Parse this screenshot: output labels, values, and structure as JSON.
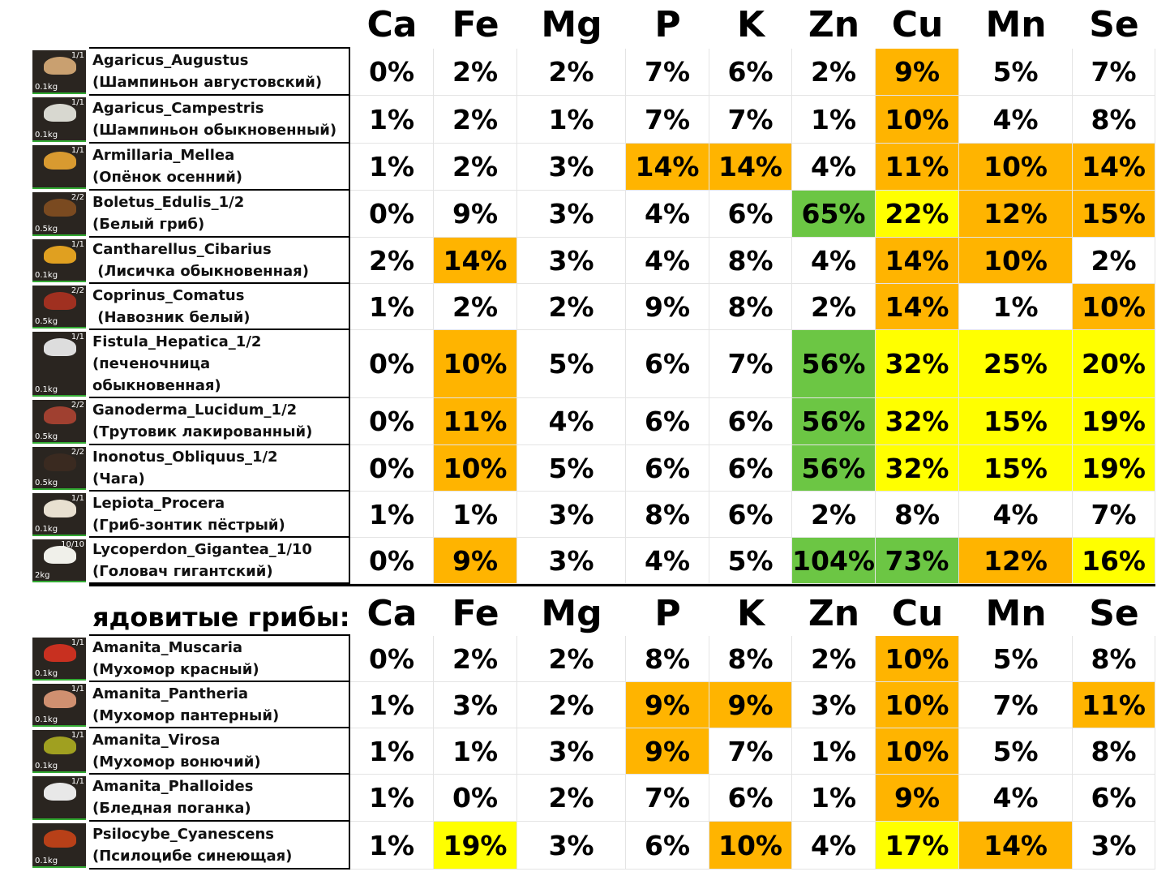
{
  "tables": [
    {
      "caption": null,
      "columns": [
        "Ca",
        "Fe",
        "Mg",
        "P",
        "K",
        "Zn",
        "Cu",
        "Mn",
        "Se"
      ],
      "rows": [
        {
          "lines": [
            "Agaricus_Augustus",
            "(Шампиньон августовский)"
          ],
          "count": "1/1",
          "weight": "0.1kg",
          "cells": [
            "0%",
            "2%",
            "2%",
            "7%",
            "6%",
            "2%",
            "9%",
            "5%",
            "7%"
          ],
          "colors": [
            null,
            null,
            null,
            null,
            null,
            null,
            "#ffb400",
            null,
            null
          ]
        },
        {
          "lines": [
            "Agaricus_Campestris",
            "(Шампиньон обыкновенный)"
          ],
          "count": "1/1",
          "weight": "0.1kg",
          "cells": [
            "1%",
            "2%",
            "1%",
            "7%",
            "7%",
            "1%",
            "10%",
            "4%",
            "8%"
          ],
          "colors": [
            null,
            null,
            null,
            null,
            null,
            null,
            "#ffb400",
            null,
            null
          ]
        },
        {
          "lines": [
            "Armillaria_Mellea",
            "(Опёнок осенний)"
          ],
          "count": "1/1",
          "weight": null,
          "cells": [
            "1%",
            "2%",
            "3%",
            "14%",
            "14%",
            "4%",
            "11%",
            "10%",
            "14%"
          ],
          "colors": [
            null,
            null,
            null,
            "#ffb400",
            "#ffb400",
            null,
            "#ffb400",
            "#ffb400",
            "#ffb400"
          ]
        },
        {
          "lines": [
            "Boletus_Edulis_1/2",
            "(Белый гриб)"
          ],
          "count": "2/2",
          "weight": "0.5kg",
          "cells": [
            "0%",
            "9%",
            "3%",
            "4%",
            "6%",
            "65%",
            "22%",
            "12%",
            "15%"
          ],
          "colors": [
            null,
            null,
            null,
            null,
            null,
            "#6cc644",
            "#ffff00",
            "#ffb400",
            "#ffb400"
          ]
        },
        {
          "lines": [
            "Cantharellus_Cibarius",
            " (Лисичка обыкновенная)"
          ],
          "count": "1/1",
          "weight": "0.1kg",
          "cells": [
            "2%",
            "14%",
            "3%",
            "4%",
            "8%",
            "4%",
            "14%",
            "10%",
            "2%"
          ],
          "colors": [
            null,
            "#ffb400",
            null,
            null,
            null,
            null,
            "#ffb400",
            "#ffb400",
            null
          ]
        },
        {
          "lines": [
            "Coprinus_Comatus",
            " (Навозник белый)"
          ],
          "count": "2/2",
          "weight": "0.5kg",
          "cells": [
            "1%",
            "2%",
            "2%",
            "9%",
            "8%",
            "2%",
            "14%",
            "1%",
            "10%"
          ],
          "colors": [
            null,
            null,
            null,
            null,
            null,
            null,
            "#ffb400",
            null,
            "#ffb400"
          ]
        },
        {
          "lines": [
            "Fistula_Hepatica_1/2",
            "(печеночница",
            "обыкновенная)"
          ],
          "count": "1/1",
          "weight": "0.1kg",
          "cells": [
            "0%",
            "10%",
            "5%",
            "6%",
            "7%",
            "56%",
            "32%",
            "25%",
            "20%"
          ],
          "colors": [
            null,
            "#ffb400",
            null,
            null,
            null,
            "#6cc644",
            "#ffff00",
            "#ffff00",
            "#ffff00"
          ]
        },
        {
          "lines": [
            "Ganoderma_Lucidum_1/2",
            "(Трутовик лакированный)"
          ],
          "count": "2/2",
          "weight": "0.5kg",
          "cells": [
            "0%",
            "11%",
            "4%",
            "6%",
            "6%",
            "56%",
            "32%",
            "15%",
            "19%"
          ],
          "colors": [
            null,
            "#ffb400",
            null,
            null,
            null,
            "#6cc644",
            "#ffff00",
            "#ffff00",
            "#ffff00"
          ]
        },
        {
          "lines": [
            "Inonotus_Obliquus_1/2",
            "(Чага)"
          ],
          "count": "2/2",
          "weight": "0.5kg",
          "cells": [
            "0%",
            "10%",
            "5%",
            "6%",
            "6%",
            "56%",
            "32%",
            "15%",
            "19%"
          ],
          "colors": [
            null,
            "#ffb400",
            null,
            null,
            null,
            "#6cc644",
            "#ffff00",
            "#ffff00",
            "#ffff00"
          ]
        },
        {
          "lines": [
            "Lepiota_Procera",
            "(Гриб-зонтик пёстрый)"
          ],
          "count": "1/1",
          "weight": "0.1kg",
          "cells": [
            "1%",
            "1%",
            "3%",
            "8%",
            "6%",
            "2%",
            "8%",
            "4%",
            "7%"
          ],
          "colors": [
            null,
            null,
            null,
            null,
            null,
            null,
            null,
            null,
            null
          ]
        },
        {
          "lines": [
            "Lycoperdon_Gigantea_1/10",
            "(Головач гигантский)"
          ],
          "count": "10/10",
          "weight": "2kg",
          "cells": [
            "0%",
            "9%",
            "3%",
            "4%",
            "5%",
            "104%",
            "73%",
            "12%",
            "16%"
          ],
          "colors": [
            null,
            "#ffb400",
            null,
            null,
            null,
            "#6cc644",
            "#6cc644",
            "#ffb400",
            "#ffff00"
          ]
        }
      ]
    },
    {
      "caption": "ядовитые грибы:",
      "columns": [
        "Ca",
        "Fe",
        "Mg",
        "P",
        "K",
        "Zn",
        "Cu",
        "Mn",
        "Se"
      ],
      "rows": [
        {
          "lines": [
            "Amanita_Muscaria",
            "(Мухомор красный)"
          ],
          "count": "1/1",
          "weight": "0.1kg",
          "cells": [
            "0%",
            "2%",
            "2%",
            "8%",
            "8%",
            "2%",
            "10%",
            "5%",
            "8%"
          ],
          "colors": [
            null,
            null,
            null,
            null,
            null,
            null,
            "#ffb400",
            null,
            null
          ]
        },
        {
          "lines": [
            "Amanita_Pantheria",
            "(Мухомор пантерный)"
          ],
          "count": "1/1",
          "weight": "0.1kg",
          "cells": [
            "1%",
            "3%",
            "2%",
            "9%",
            "9%",
            "3%",
            "10%",
            "7%",
            "11%"
          ],
          "colors": [
            null,
            null,
            null,
            "#ffb400",
            "#ffb400",
            null,
            "#ffb400",
            null,
            "#ffb400"
          ]
        },
        {
          "lines": [
            "Amanita_Virosa",
            "(Мухомор вонючий)"
          ],
          "count": "1/1",
          "weight": "0.1kg",
          "cells": [
            "1%",
            "1%",
            "3%",
            "9%",
            "7%",
            "1%",
            "10%",
            "5%",
            "8%"
          ],
          "colors": [
            null,
            null,
            null,
            "#ffb400",
            null,
            null,
            "#ffb400",
            null,
            null
          ]
        },
        {
          "lines": [
            "Amanita_Phalloides",
            "(Бледная поганка)"
          ],
          "count": "1/1",
          "weight": null,
          "cells": [
            "1%",
            "0%",
            "2%",
            "7%",
            "6%",
            "1%",
            "9%",
            "4%",
            "6%"
          ],
          "colors": [
            null,
            null,
            null,
            null,
            null,
            null,
            "#ffb400",
            null,
            null
          ]
        },
        {
          "lines": [
            "Psilocybe_Cyanescens",
            "(Псилоцибе синеющая)"
          ],
          "count": null,
          "weight": "0.1kg",
          "cells": [
            "1%",
            "19%",
            "3%",
            "6%",
            "10%",
            "4%",
            "17%",
            "14%",
            "3%"
          ],
          "colors": [
            null,
            "#ffff00",
            null,
            null,
            "#ffb400",
            null,
            "#ffff00",
            "#ffb400",
            null
          ]
        }
      ]
    }
  ]
}
